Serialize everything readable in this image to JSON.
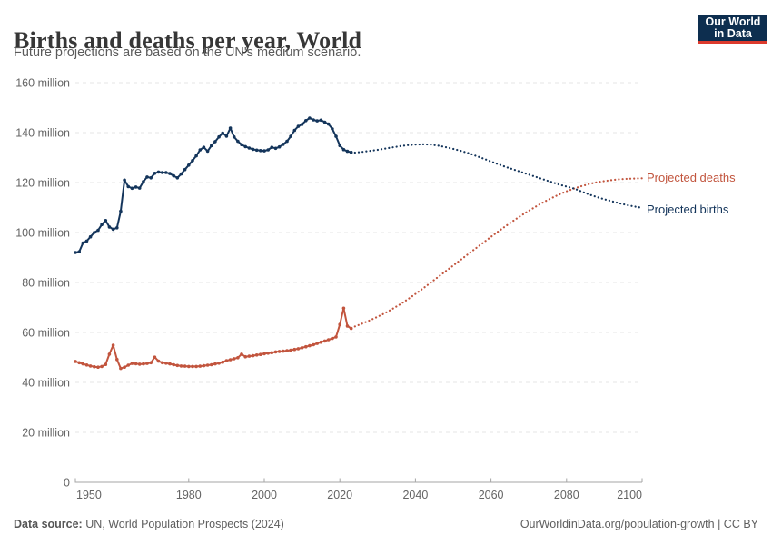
{
  "header": {
    "logo": {
      "line1": "Our World",
      "line2": "in Data"
    }
  },
  "footer": {
    "source_prefix": "Data source:",
    "source_text": " UN, World Population Prospects (2024)",
    "credit": "OurWorldinData.org/population-growth | CC BY"
  },
  "chart_data": {
    "type": "line",
    "title": "Births and deaths per year, World",
    "subtitle": "Future projections are based on the UN's medium scenario.",
    "unit": "million",
    "x_range": [
      1950,
      2100
    ],
    "y_range": [
      0,
      160000000
    ],
    "grid": true,
    "legend_position": "right-inline",
    "y_ticks": [
      {
        "v": 0,
        "label": "0"
      },
      {
        "v": 20,
        "label": "20 million"
      },
      {
        "v": 40,
        "label": "40 million"
      },
      {
        "v": 60,
        "label": "60 million"
      },
      {
        "v": 80,
        "label": "80 million"
      },
      {
        "v": 100,
        "label": "100 million"
      },
      {
        "v": 120,
        "label": "120 million"
      },
      {
        "v": 140,
        "label": "140 million"
      },
      {
        "v": 160,
        "label": "160 million"
      }
    ],
    "x_ticks": [
      {
        "v": 1950,
        "label": "1950"
      },
      {
        "v": 1980,
        "label": "1980"
      },
      {
        "v": 2000,
        "label": "2000"
      },
      {
        "v": 2020,
        "label": "2020"
      },
      {
        "v": 2040,
        "label": "2040"
      },
      {
        "v": 2060,
        "label": "2060"
      },
      {
        "v": 2080,
        "label": "2080"
      },
      {
        "v": 2100,
        "label": "2100"
      }
    ],
    "series": [
      {
        "name": "deaths-observed",
        "legend": null,
        "color": "#c2553e",
        "style": "solid",
        "points": [
          [
            1950,
            48.4
          ],
          [
            1951,
            47.9
          ],
          [
            1952,
            47.4
          ],
          [
            1953,
            47.0
          ],
          [
            1954,
            46.6
          ],
          [
            1955,
            46.3
          ],
          [
            1956,
            46.1
          ],
          [
            1957,
            46.4
          ],
          [
            1958,
            47.2
          ],
          [
            1959,
            51.3
          ],
          [
            1960,
            54.9
          ],
          [
            1961,
            49.2
          ],
          [
            1962,
            45.6
          ],
          [
            1963,
            46.1
          ],
          [
            1964,
            46.9
          ],
          [
            1965,
            47.6
          ],
          [
            1966,
            47.5
          ],
          [
            1967,
            47.3
          ],
          [
            1968,
            47.4
          ],
          [
            1969,
            47.6
          ],
          [
            1970,
            47.9
          ],
          [
            1971,
            50.1
          ],
          [
            1972,
            48.5
          ],
          [
            1973,
            47.9
          ],
          [
            1974,
            47.7
          ],
          [
            1975,
            47.4
          ],
          [
            1976,
            47.1
          ],
          [
            1977,
            46.8
          ],
          [
            1978,
            46.6
          ],
          [
            1979,
            46.5
          ],
          [
            1980,
            46.4
          ],
          [
            1981,
            46.4
          ],
          [
            1982,
            46.4
          ],
          [
            1983,
            46.5
          ],
          [
            1984,
            46.7
          ],
          [
            1985,
            46.9
          ],
          [
            1986,
            47.1
          ],
          [
            1987,
            47.4
          ],
          [
            1988,
            47.7
          ],
          [
            1989,
            48.1
          ],
          [
            1990,
            48.7
          ],
          [
            1991,
            49.1
          ],
          [
            1992,
            49.5
          ],
          [
            1993,
            49.9
          ],
          [
            1994,
            51.3
          ],
          [
            1995,
            50.3
          ],
          [
            1996,
            50.5
          ],
          [
            1997,
            50.7
          ],
          [
            1998,
            51.0
          ],
          [
            1999,
            51.2
          ],
          [
            2000,
            51.5
          ],
          [
            2001,
            51.7
          ],
          [
            2002,
            51.9
          ],
          [
            2003,
            52.2
          ],
          [
            2004,
            52.4
          ],
          [
            2005,
            52.5
          ],
          [
            2006,
            52.7
          ],
          [
            2007,
            52.9
          ],
          [
            2008,
            53.2
          ],
          [
            2009,
            53.5
          ],
          [
            2010,
            53.9
          ],
          [
            2011,
            54.3
          ],
          [
            2012,
            54.7
          ],
          [
            2013,
            55.1
          ],
          [
            2014,
            55.6
          ],
          [
            2015,
            56.1
          ],
          [
            2016,
            56.6
          ],
          [
            2017,
            57.1
          ],
          [
            2018,
            57.6
          ],
          [
            2019,
            58.2
          ],
          [
            2020,
            63.2
          ],
          [
            2021,
            69.7
          ],
          [
            2022,
            62.6
          ],
          [
            2023,
            61.6
          ]
        ]
      },
      {
        "name": "deaths-projected",
        "legend": "Projected deaths",
        "color": "#c2553e",
        "style": "dotted",
        "points": [
          [
            2024,
            62.4
          ],
          [
            2026,
            63.6
          ],
          [
            2028,
            64.9
          ],
          [
            2030,
            66.3
          ],
          [
            2032,
            67.8
          ],
          [
            2034,
            69.5
          ],
          [
            2036,
            71.3
          ],
          [
            2038,
            73.3
          ],
          [
            2040,
            75.4
          ],
          [
            2042,
            77.6
          ],
          [
            2044,
            79.9
          ],
          [
            2046,
            82.2
          ],
          [
            2048,
            84.5
          ],
          [
            2050,
            86.8
          ],
          [
            2052,
            89.1
          ],
          [
            2054,
            91.4
          ],
          [
            2056,
            93.7
          ],
          [
            2058,
            96.0
          ],
          [
            2060,
            98.3
          ],
          [
            2062,
            100.5
          ],
          [
            2064,
            102.7
          ],
          [
            2066,
            104.8
          ],
          [
            2068,
            106.8
          ],
          [
            2070,
            108.7
          ],
          [
            2072,
            110.5
          ],
          [
            2074,
            112.2
          ],
          [
            2076,
            113.8
          ],
          [
            2078,
            115.2
          ],
          [
            2080,
            116.5
          ],
          [
            2082,
            117.6
          ],
          [
            2084,
            118.6
          ],
          [
            2086,
            119.4
          ],
          [
            2088,
            120.1
          ],
          [
            2090,
            120.6
          ],
          [
            2092,
            121.0
          ],
          [
            2094,
            121.3
          ],
          [
            2096,
            121.5
          ],
          [
            2098,
            121.6
          ],
          [
            2100,
            121.7
          ]
        ]
      },
      {
        "name": "births-observed",
        "legend": null,
        "color": "#14355b",
        "style": "solid",
        "points": [
          [
            1950,
            92.0
          ],
          [
            1951,
            92.3
          ],
          [
            1952,
            95.8
          ],
          [
            1953,
            96.6
          ],
          [
            1954,
            98.3
          ],
          [
            1955,
            100.0
          ],
          [
            1956,
            100.9
          ],
          [
            1957,
            103.2
          ],
          [
            1958,
            104.8
          ],
          [
            1959,
            102.2
          ],
          [
            1960,
            101.3
          ],
          [
            1961,
            101.9
          ],
          [
            1962,
            108.5
          ],
          [
            1963,
            121.0
          ],
          [
            1964,
            118.4
          ],
          [
            1965,
            117.7
          ],
          [
            1966,
            118.2
          ],
          [
            1967,
            117.8
          ],
          [
            1968,
            120.4
          ],
          [
            1969,
            122.2
          ],
          [
            1970,
            121.9
          ],
          [
            1971,
            123.7
          ],
          [
            1972,
            124.2
          ],
          [
            1973,
            124.0
          ],
          [
            1974,
            124.0
          ],
          [
            1975,
            123.6
          ],
          [
            1976,
            122.7
          ],
          [
            1977,
            121.9
          ],
          [
            1978,
            123.4
          ],
          [
            1979,
            125.2
          ],
          [
            1980,
            127.0
          ],
          [
            1981,
            128.8
          ],
          [
            1982,
            130.7
          ],
          [
            1983,
            133.1
          ],
          [
            1984,
            134.1
          ],
          [
            1985,
            132.6
          ],
          [
            1986,
            134.8
          ],
          [
            1987,
            136.4
          ],
          [
            1988,
            138.3
          ],
          [
            1989,
            139.8
          ],
          [
            1990,
            138.6
          ],
          [
            1991,
            141.8
          ],
          [
            1992,
            138.3
          ],
          [
            1993,
            136.5
          ],
          [
            1994,
            135.2
          ],
          [
            1995,
            134.4
          ],
          [
            1996,
            133.8
          ],
          [
            1997,
            133.3
          ],
          [
            1998,
            133.0
          ],
          [
            1999,
            132.8
          ],
          [
            2000,
            132.7
          ],
          [
            2001,
            133.1
          ],
          [
            2002,
            134.1
          ],
          [
            2003,
            133.7
          ],
          [
            2004,
            134.3
          ],
          [
            2005,
            135.3
          ],
          [
            2006,
            136.5
          ],
          [
            2007,
            138.5
          ],
          [
            2008,
            140.9
          ],
          [
            2009,
            142.5
          ],
          [
            2010,
            143.3
          ],
          [
            2011,
            144.8
          ],
          [
            2012,
            145.8
          ],
          [
            2013,
            145.1
          ],
          [
            2014,
            144.7
          ],
          [
            2015,
            145.0
          ],
          [
            2016,
            144.2
          ],
          [
            2017,
            143.4
          ],
          [
            2018,
            141.5
          ],
          [
            2019,
            138.5
          ],
          [
            2020,
            134.8
          ],
          [
            2021,
            133.2
          ],
          [
            2022,
            132.5
          ],
          [
            2023,
            132.1
          ]
        ]
      },
      {
        "name": "births-projected",
        "legend": "Projected births",
        "color": "#14355b",
        "style": "dotted",
        "points": [
          [
            2024,
            132.0
          ],
          [
            2026,
            132.3
          ],
          [
            2028,
            132.7
          ],
          [
            2030,
            133.1
          ],
          [
            2032,
            133.6
          ],
          [
            2034,
            134.1
          ],
          [
            2036,
            134.6
          ],
          [
            2038,
            135.0
          ],
          [
            2040,
            135.2
          ],
          [
            2042,
            135.3
          ],
          [
            2044,
            135.2
          ],
          [
            2046,
            134.8
          ],
          [
            2048,
            134.2
          ],
          [
            2050,
            133.5
          ],
          [
            2052,
            132.7
          ],
          [
            2054,
            131.8
          ],
          [
            2056,
            130.7
          ],
          [
            2058,
            129.6
          ],
          [
            2060,
            128.4
          ],
          [
            2062,
            127.3
          ],
          [
            2064,
            126.2
          ],
          [
            2066,
            125.2
          ],
          [
            2068,
            124.2
          ],
          [
            2070,
            123.2
          ],
          [
            2072,
            122.2
          ],
          [
            2074,
            121.2
          ],
          [
            2076,
            120.2
          ],
          [
            2078,
            119.2
          ],
          [
            2080,
            118.4
          ],
          [
            2082,
            117.6
          ],
          [
            2084,
            116.4
          ],
          [
            2086,
            115.2
          ],
          [
            2088,
            114.2
          ],
          [
            2090,
            113.3
          ],
          [
            2092,
            112.5
          ],
          [
            2094,
            111.7
          ],
          [
            2096,
            111.0
          ],
          [
            2098,
            110.4
          ],
          [
            2100,
            109.9
          ]
        ]
      }
    ]
  }
}
